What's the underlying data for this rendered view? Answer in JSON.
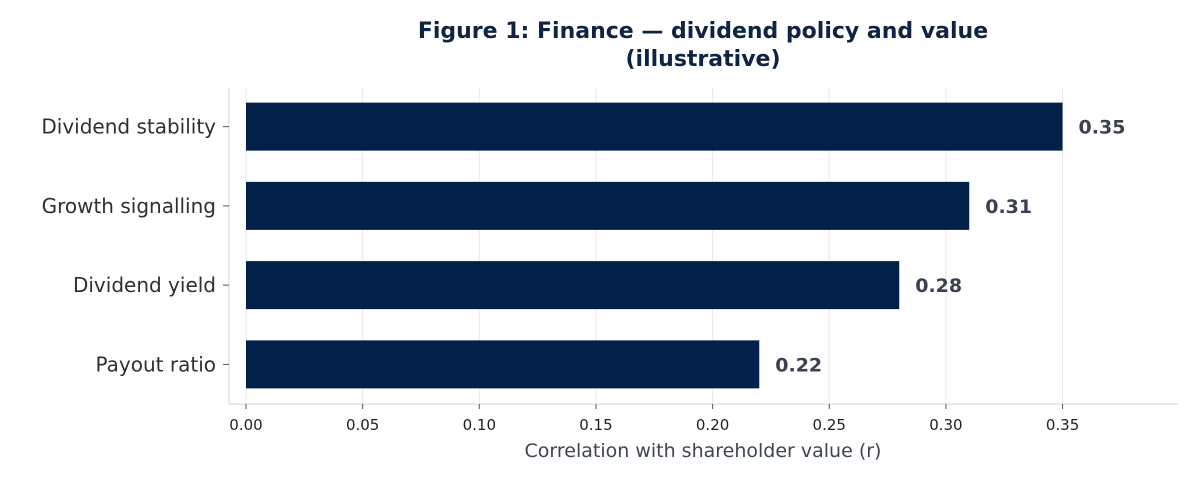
{
  "chart_data": {
    "type": "bar",
    "orientation": "horizontal",
    "title_line1": "Figure 1: Finance — dividend policy and value",
    "title_line2": "(illustrative)",
    "categories": [
      "Dividend stability",
      "Growth signalling",
      "Dividend yield",
      "Payout ratio"
    ],
    "values": [
      0.35,
      0.31,
      0.28,
      0.22
    ],
    "value_labels": [
      "0.35",
      "0.31",
      "0.28",
      "0.22"
    ],
    "xlabel": "Correlation with shareholder value (r)",
    "ylabel": "",
    "xlim": [
      0,
      0.4
    ],
    "x_ticks": [
      "0.00",
      "0.05",
      "0.10",
      "0.15",
      "0.20",
      "0.25",
      "0.30",
      "0.35"
    ],
    "grid": "vertical",
    "legend": "none",
    "bar_color": "#03204a",
    "gridline_color": "#e6e9ee"
  }
}
